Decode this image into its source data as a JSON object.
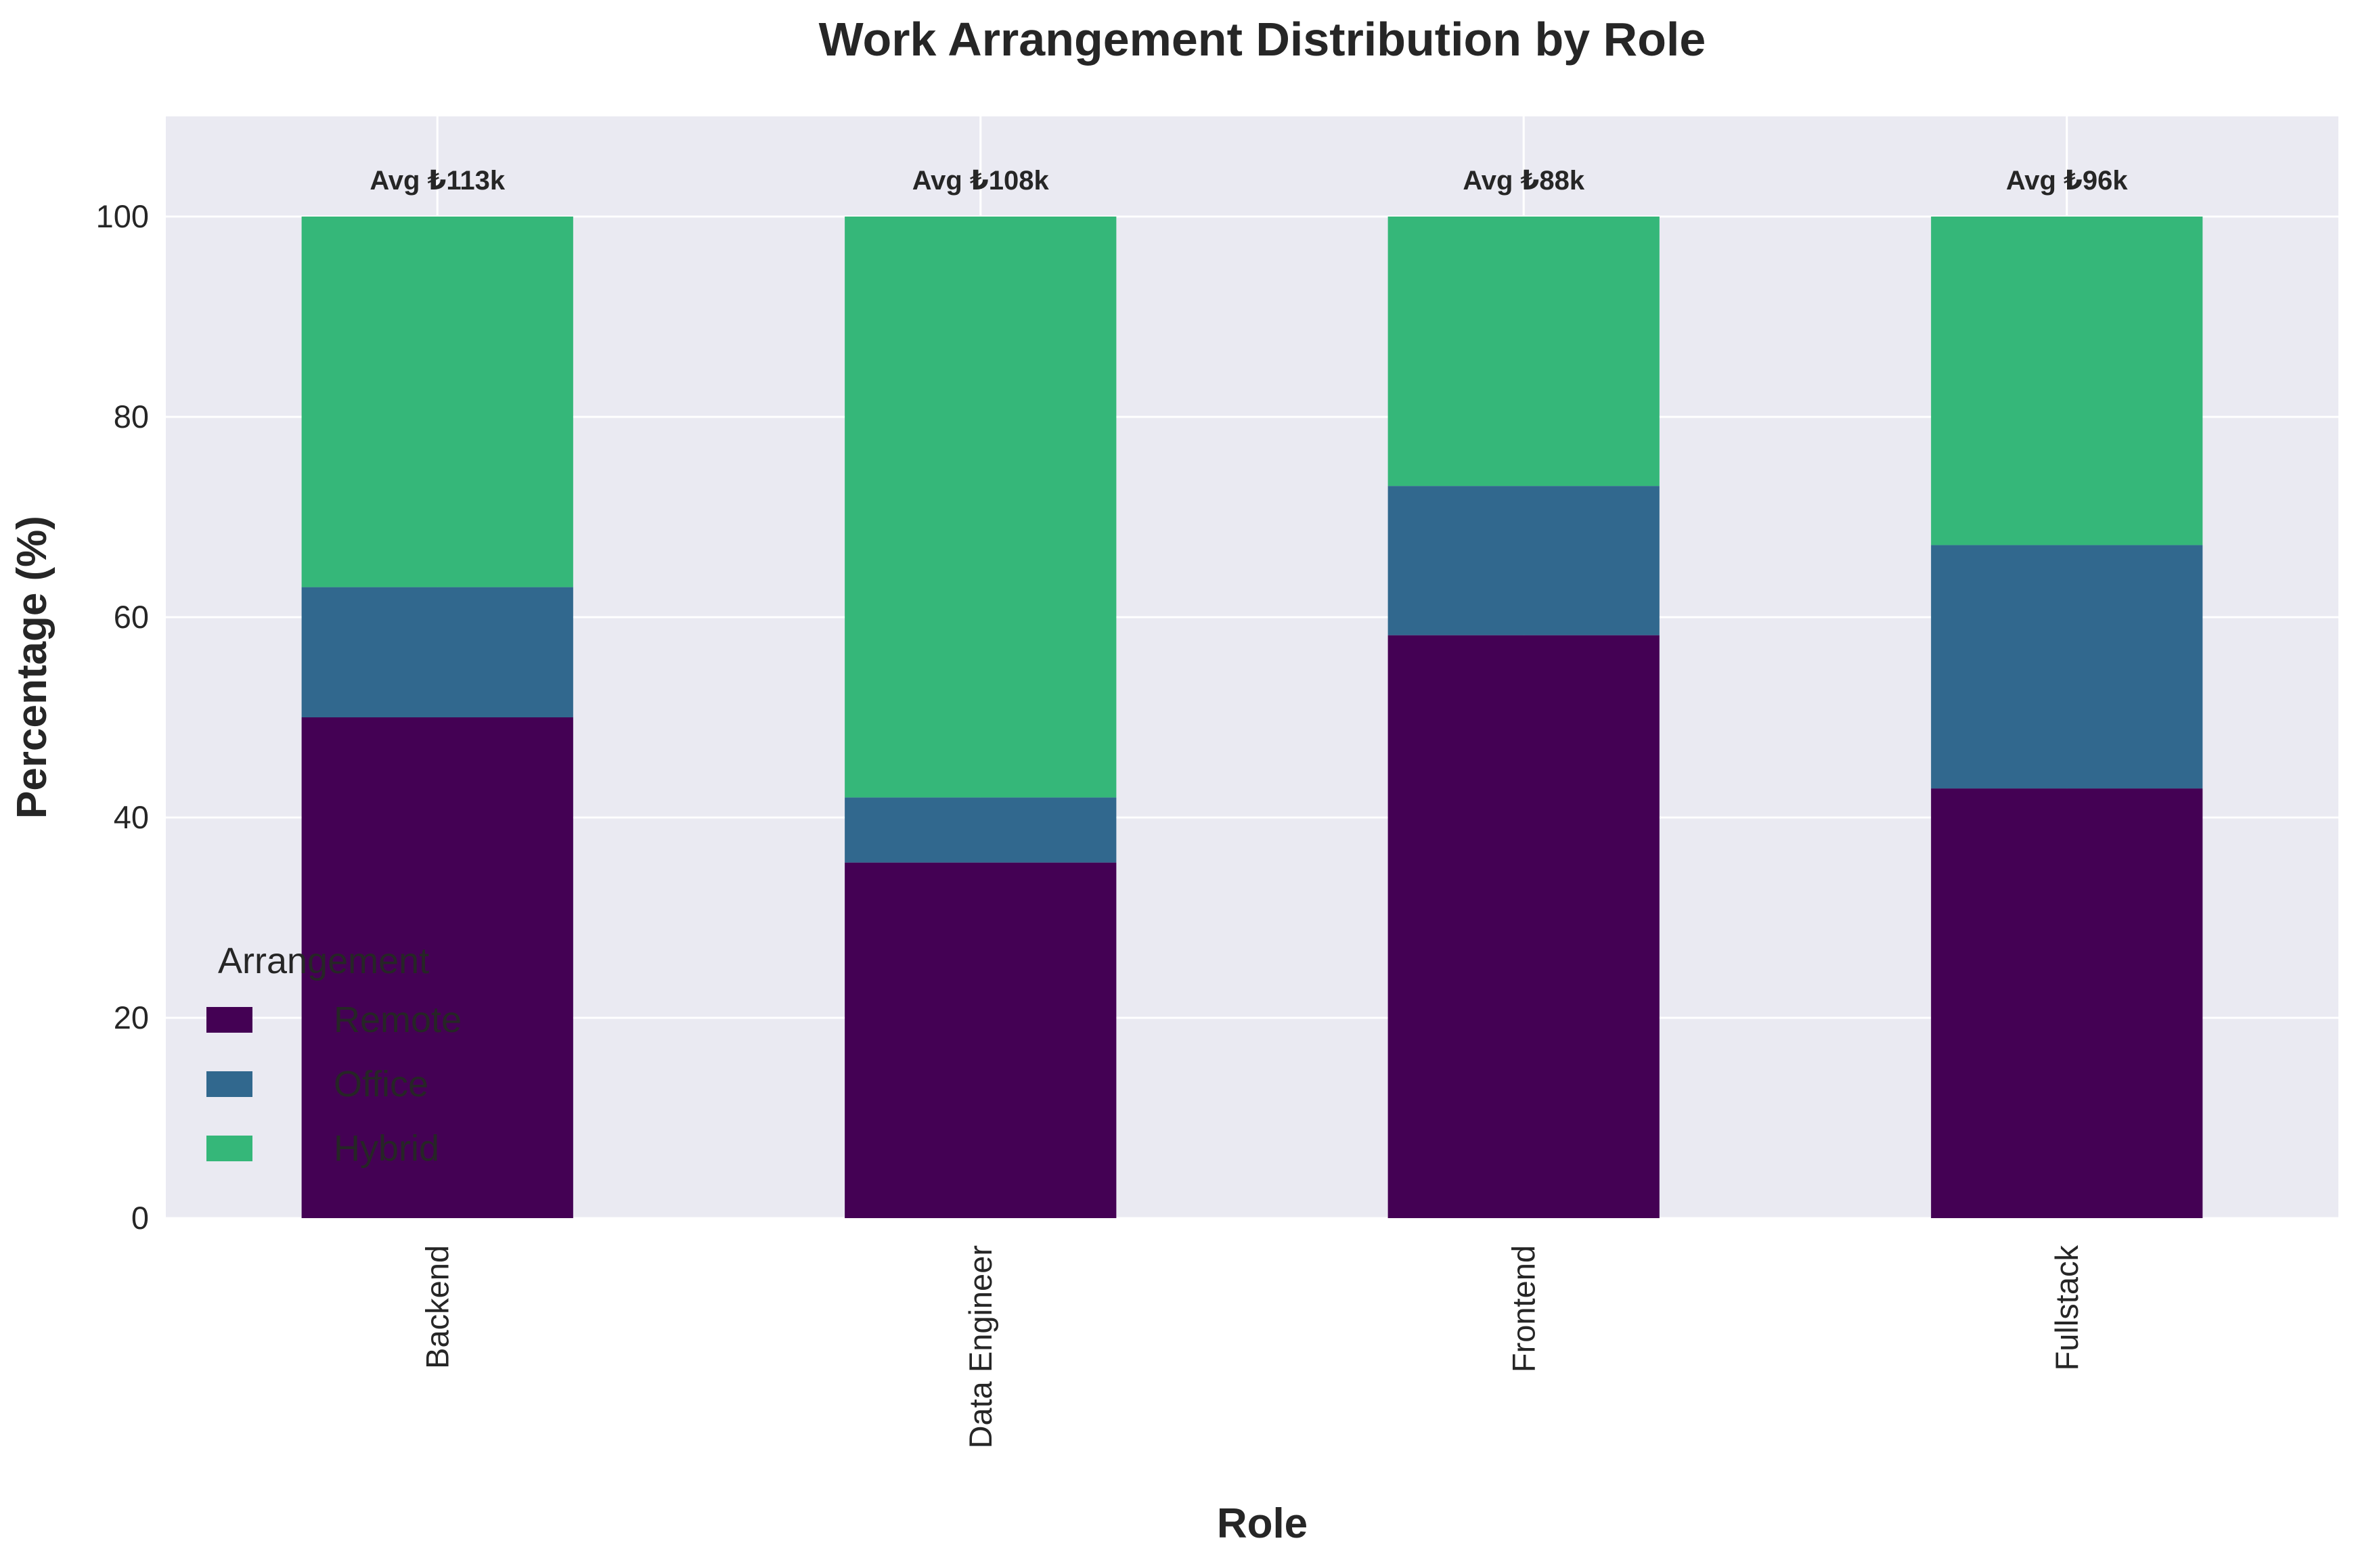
{
  "chart_data": {
    "type": "bar",
    "stacked": true,
    "title": "Work Arrangement Distribution by Role",
    "xlabel": "Role",
    "ylabel": "Percentage (%)",
    "categories": [
      "Backend",
      "Data Engineer",
      "Frontend",
      "Fullstack"
    ],
    "series": [
      {
        "name": "Remote",
        "color": "#440154",
        "values": [
          50.0,
          35.5,
          58.2,
          42.9
        ]
      },
      {
        "name": "Office",
        "color": "#31688e",
        "values": [
          13.0,
          6.5,
          14.9,
          24.3
        ]
      },
      {
        "name": "Hybrid",
        "color": "#35b779",
        "values": [
          37.0,
          58.0,
          26.9,
          32.8
        ]
      }
    ],
    "annotations": [
      "Avg ₺113k",
      "Avg ₺108k",
      "Avg ₺88k",
      "Avg ₺96k"
    ],
    "yticks": [
      0,
      20,
      40,
      60,
      80,
      100
    ],
    "ylim": [
      0,
      110
    ],
    "grid": true,
    "legend": {
      "title": "Arrangement",
      "placement": "lower-left"
    }
  }
}
